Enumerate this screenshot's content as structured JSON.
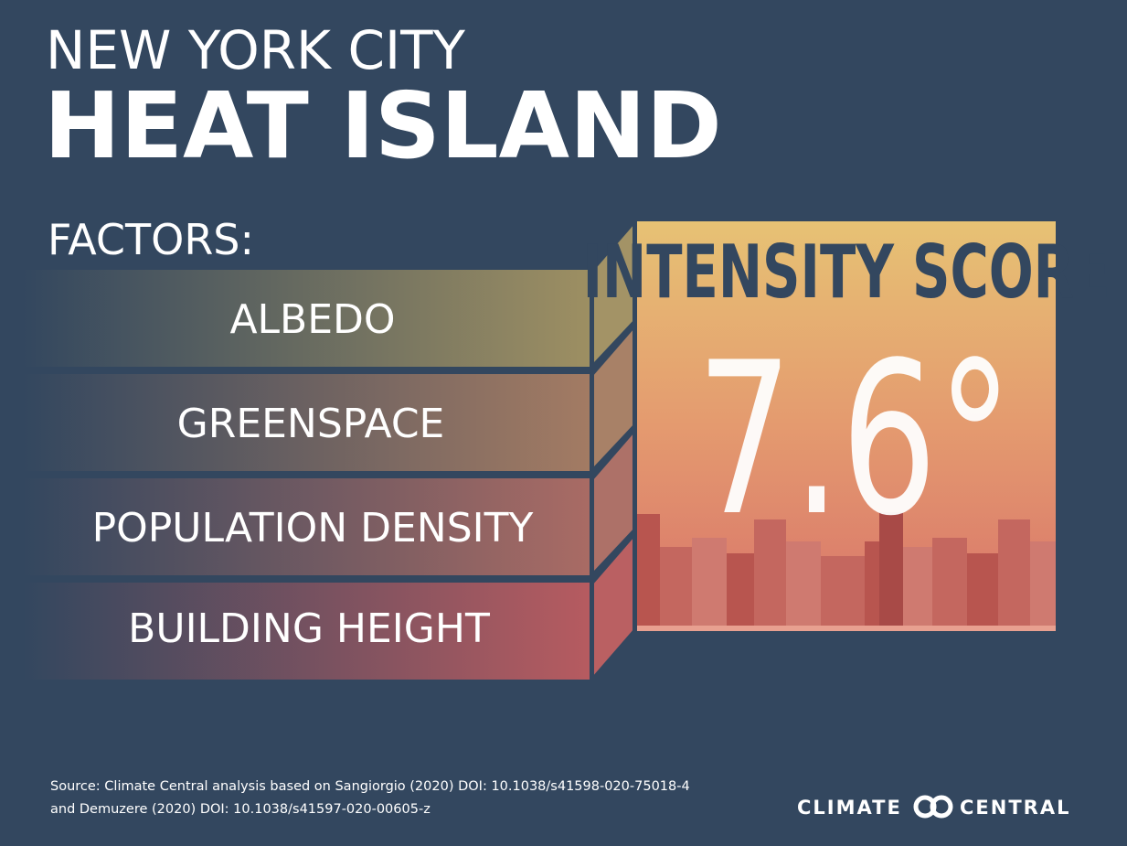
{
  "title": {
    "line1": "NEW YORK CITY",
    "line2": "HEAT ISLAND"
  },
  "factors": {
    "label": "FACTORS:",
    "items": [
      "ALBEDO",
      "GREENSPACE",
      "POPULATION DENSITY",
      "BUILDING HEIGHT"
    ]
  },
  "score": {
    "label": "INTENSITY SCORE",
    "value": "7.6°"
  },
  "source": {
    "line1": "Source: Climate Central  analysis based on Sangiorgio (2020) DOI: 10.1038/s41598-020-75018-4",
    "line2": "and Demuzere (2020)  DOI: 10.1038/s41597-020-00605-z"
  },
  "logo": {
    "left": "CLIMATE",
    "right": "CENTRAL"
  }
}
